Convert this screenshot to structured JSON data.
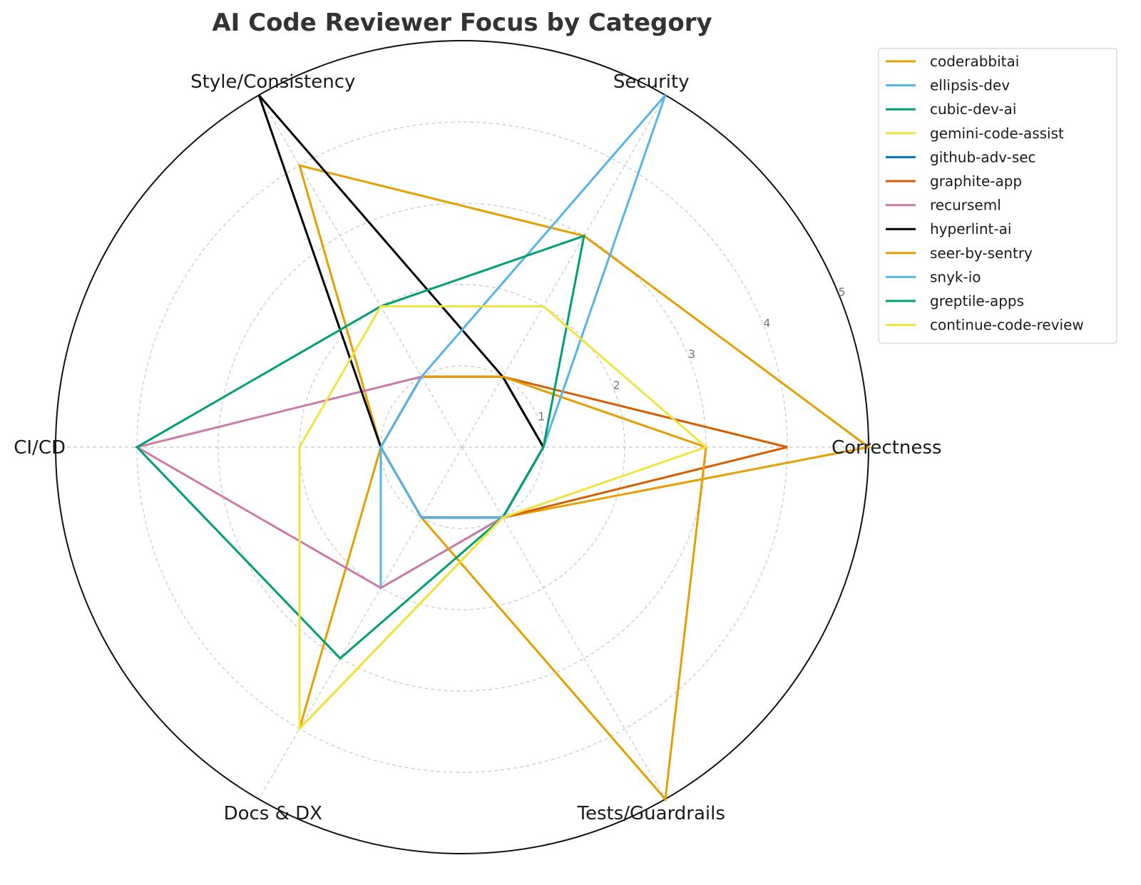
{
  "chart_data": {
    "type": "radar",
    "title": "AI Code Reviewer Focus by Category",
    "axes": [
      "Correctness",
      "Security",
      "Style/Consistency",
      "CI/CD",
      "Docs & DX",
      "Tests/Guardrails"
    ],
    "rlim": [
      0,
      5
    ],
    "rticks": [
      1,
      2,
      3,
      4,
      5
    ],
    "grid": true,
    "legend_position": "upper-right-outside",
    "series": [
      {
        "name": "coderabbitai",
        "color": "#E69F00",
        "values": [
          5,
          3,
          4,
          1,
          4,
          1
        ]
      },
      {
        "name": "ellipsis-dev",
        "color": "#56B4E9",
        "values": [
          1,
          1,
          1,
          1,
          2,
          1
        ]
      },
      {
        "name": "cubic-dev-ai",
        "color": "#009E73",
        "values": [
          1,
          1,
          1,
          1,
          1,
          1
        ]
      },
      {
        "name": "gemini-code-assist",
        "color": "#F0E442",
        "values": [
          1,
          1,
          1,
          1,
          1,
          1
        ]
      },
      {
        "name": "github-adv-sec",
        "color": "#0072B2",
        "values": [
          1,
          1,
          1,
          1,
          1,
          1
        ]
      },
      {
        "name": "graphite-app",
        "color": "#D55E00",
        "values": [
          4,
          1,
          1,
          1,
          1,
          1
        ]
      },
      {
        "name": "recurseml",
        "color": "#CC79A7",
        "values": [
          1,
          1,
          1,
          4,
          2,
          1
        ]
      },
      {
        "name": "hyperlint-ai",
        "color": "#000000",
        "values": [
          1,
          1,
          5,
          1,
          1,
          1
        ]
      },
      {
        "name": "seer-by-sentry",
        "color": "#E69F00",
        "values": [
          3,
          1,
          1,
          1,
          1,
          5
        ]
      },
      {
        "name": "snyk-io",
        "color": "#56B4E9",
        "values": [
          1,
          5,
          1,
          1,
          1,
          1
        ]
      },
      {
        "name": "greptile-apps",
        "color": "#009E73",
        "values": [
          1,
          3,
          2,
          4,
          3,
          1
        ]
      },
      {
        "name": "continue-code-review",
        "color": "#F0E442",
        "values": [
          3,
          2,
          2,
          2,
          4,
          1
        ]
      }
    ]
  }
}
